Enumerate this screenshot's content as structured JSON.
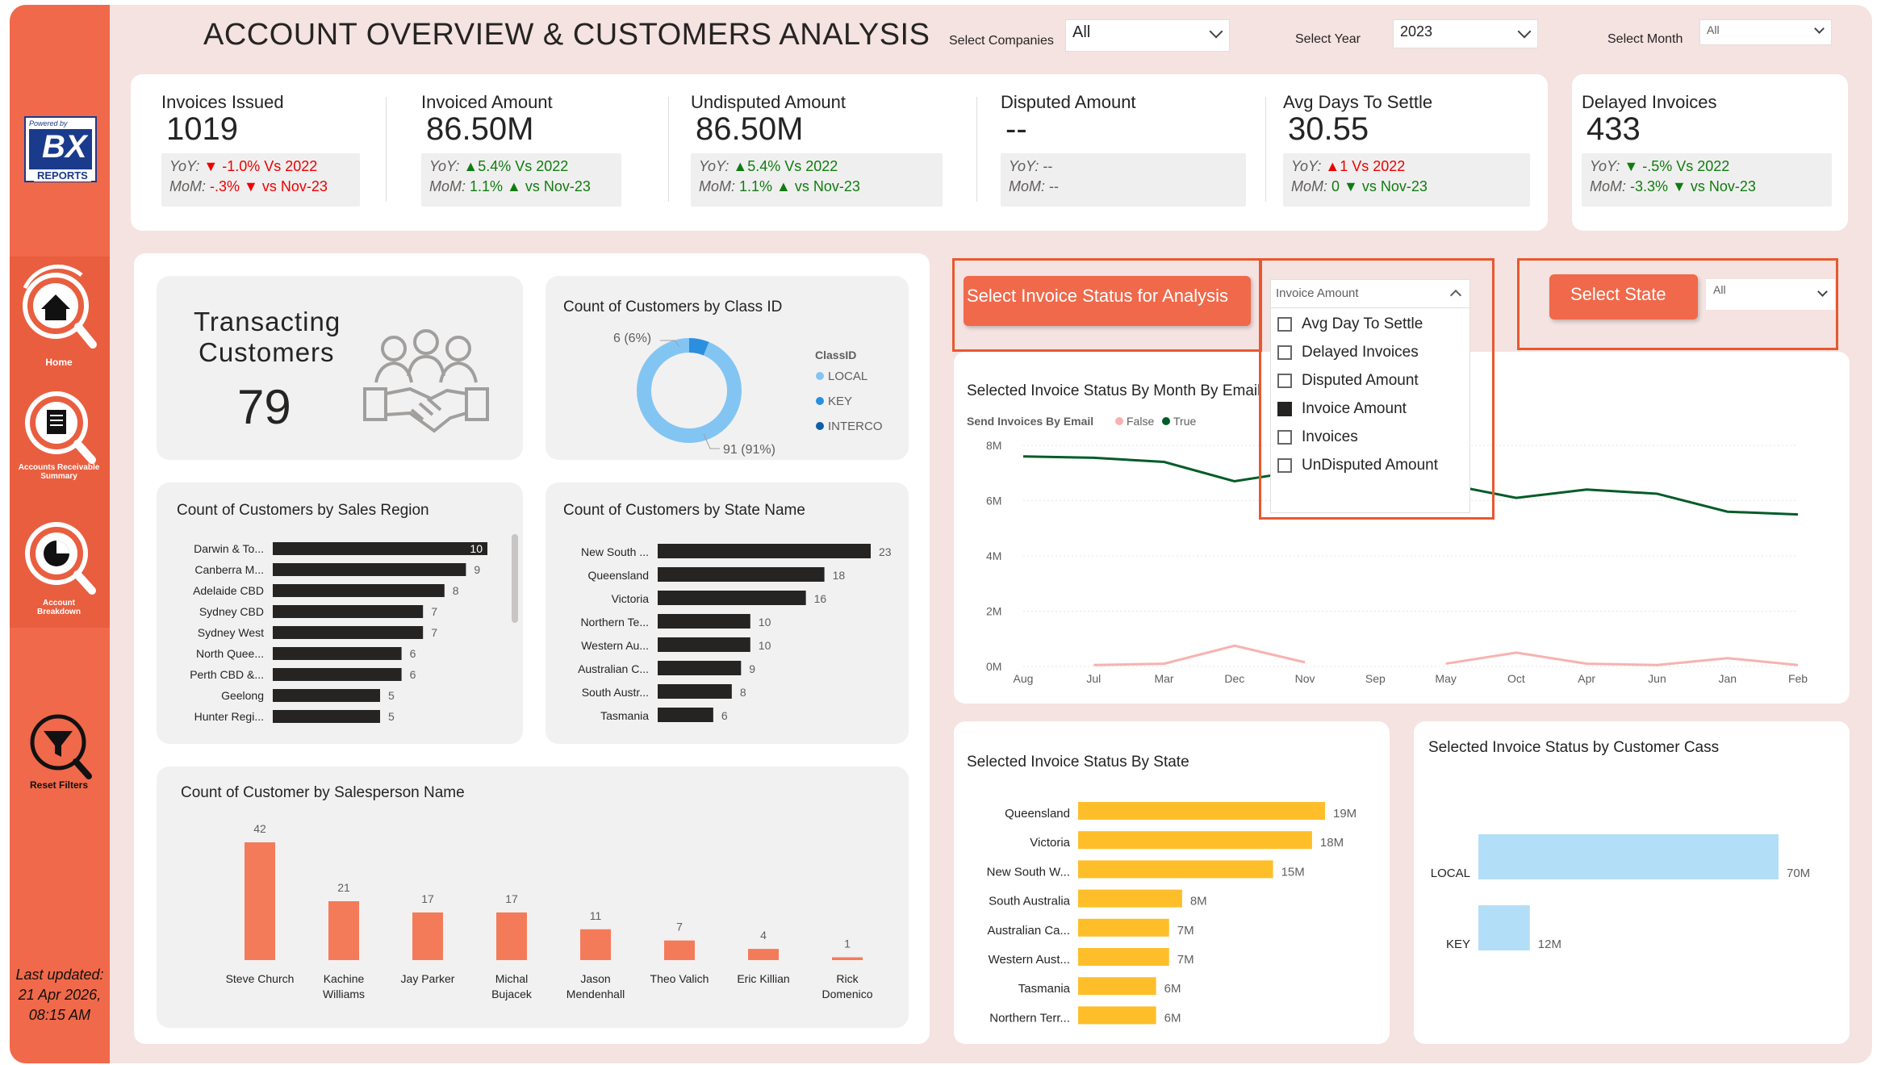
{
  "title": "ACCOUNT OVERVIEW & CUSTOMERS ANALYSIS",
  "filters": {
    "companies": {
      "label": "Select Companies",
      "value": "All"
    },
    "year": {
      "label": "Select Year",
      "value": "2023"
    },
    "month": {
      "label": "Select Month",
      "value": "All"
    }
  },
  "sidebar": {
    "logo_top": "Powered by",
    "logo_main": "BX",
    "logo_sub": "REPORTS",
    "nav": [
      {
        "label": "Home"
      },
      {
        "label": "Accounts Receivable Summary"
      },
      {
        "label": "Account Breakdown"
      },
      {
        "label": "Reset Filters"
      }
    ],
    "last_updated": [
      "Last updated:",
      "21 Apr 2026,",
      "08:15 AM"
    ]
  },
  "kpis": [
    {
      "title": "Invoices Issued",
      "value": "1019",
      "yoy_prefix": "YoY:",
      "yoy": "▼ -1.0% Vs 2022",
      "yoy_color": "red",
      "mom_prefix": "MoM:",
      "mom": "-.3% ▼ vs Nov-23",
      "mom_color": "red"
    },
    {
      "title": "Invoiced Amount",
      "value": "86.50M",
      "yoy_prefix": "YoY:",
      "yoy": "▲5.4% Vs 2022",
      "yoy_color": "green",
      "mom_prefix": "MoM:",
      "mom": "1.1% ▲ vs Nov-23",
      "mom_color": "green"
    },
    {
      "title": "Undisputed Amount",
      "value": "86.50M",
      "yoy_prefix": "YoY:",
      "yoy": "▲5.4% Vs 2022",
      "yoy_color": "green",
      "mom_prefix": "MoM:",
      "mom": "1.1% ▲ vs Nov-23",
      "mom_color": "green"
    },
    {
      "title": "Disputed Amount",
      "value": "--",
      "yoy_prefix": "YoY:",
      "yoy": "--",
      "yoy_color": "grey",
      "mom_prefix": "MoM:",
      "mom": "--",
      "mom_color": "grey"
    },
    {
      "title": "Avg Days To Settle",
      "value": "30.55",
      "yoy_prefix": "YoY:",
      "yoy": "▲1 Vs 2022",
      "yoy_color": "red",
      "mom_prefix": "MoM:",
      "mom": "0 ▼ vs Nov-23",
      "mom_color": "green"
    },
    {
      "title": "Delayed Invoices",
      "value": "433",
      "yoy_prefix": "YoY:",
      "yoy": "▼ -.5% Vs 2022",
      "yoy_color": "green",
      "mom_prefix": "MoM:",
      "mom": "-3.3% ▼ vs Nov-23",
      "mom_color": "green"
    }
  ],
  "transacting": {
    "label_line1": "Transacting",
    "label_line2": "Customers",
    "value": "79"
  },
  "controls": {
    "invoice_status_button": "Select Invoice Status for Analysis",
    "invoice_status_selected": "Invoice Amount",
    "invoice_status_options": [
      {
        "label": "Avg Day To Settle",
        "checked": false
      },
      {
        "label": "Delayed Invoices",
        "checked": false
      },
      {
        "label": "Disputed Amount",
        "checked": false
      },
      {
        "label": "Invoice Amount",
        "checked": true
      },
      {
        "label": "Invoices",
        "checked": false
      },
      {
        "label": "UnDisputed Amount",
        "checked": false
      }
    ],
    "state_button": "Select State",
    "state_value": "All"
  },
  "colors": {
    "accent": "#f0694a",
    "bar_dark": "#252423",
    "bar_salesperson": "#f47b5a",
    "bar_state": "#fdbe2a",
    "bar_class": "#b3def7",
    "line_true": "#005c27",
    "line_false": "#f7b2b0",
    "donut_local": "#83c5f2",
    "donut_key": "#2b8fe0",
    "donut_interco": "#0d5fa6"
  },
  "chart_data": [
    {
      "type": "pie",
      "title": "Count of Customers by Class ID",
      "legend_title": "ClassID",
      "categories": [
        "LOCAL",
        "KEY",
        "INTERCO"
      ],
      "values": [
        91,
        6,
        0
      ],
      "labels": [
        "91 (91%)",
        "6 (6%)"
      ]
    },
    {
      "type": "bar",
      "title": "Count of Customers by Sales Region",
      "categories": [
        "Darwin & To...",
        "Canberra M...",
        "Adelaide CBD",
        "Sydney CBD",
        "Sydney West",
        "North Quee...",
        "Perth CBD &...",
        "Geelong",
        "Hunter Regi..."
      ],
      "values": [
        10,
        9,
        8,
        7,
        7,
        6,
        6,
        5,
        5
      ]
    },
    {
      "type": "bar",
      "title": "Count of Customers by State Name",
      "categories": [
        "New South ...",
        "Queensland",
        "Victoria",
        "Northern Te...",
        "Western Au...",
        "Australian C...",
        "South Austr...",
        "Tasmania"
      ],
      "values": [
        23,
        18,
        16,
        10,
        10,
        9,
        8,
        6
      ]
    },
    {
      "type": "bar",
      "title": "Count of Customer by Salesperson Name",
      "categories": [
        "Steve Church",
        "Kachine Williams",
        "Jay Parker",
        "Michal Bujacek",
        "Jason Mendenhall",
        "Theo Valich",
        "Eric Killian",
        "Rick Domenico"
      ],
      "values": [
        42,
        21,
        17,
        17,
        11,
        7,
        4,
        1
      ]
    },
    {
      "type": "line",
      "title": "Selected Invoice Status By Month By Email",
      "legend_title": "Send Invoices By Email",
      "x": [
        "Aug",
        "Jul",
        "Mar",
        "Dec",
        "Nov",
        "Sep",
        "May",
        "Oct",
        "Apr",
        "Jun",
        "Jan",
        "Feb"
      ],
      "y_ticks": [
        "0M",
        "2M",
        "4M",
        "6M",
        "8M"
      ],
      "ylim": [
        0,
        8
      ],
      "series": [
        {
          "name": "False",
          "values": [
            null,
            0.05,
            0.1,
            0.75,
            0.15,
            null,
            0.1,
            0.5,
            0.1,
            0.05,
            0.3,
            0.05
          ]
        },
        {
          "name": "True",
          "values": [
            7.6,
            7.55,
            7.4,
            6.7,
            7.1,
            6.9,
            6.6,
            6.1,
            6.4,
            6.25,
            5.6,
            5.5
          ]
        }
      ]
    },
    {
      "type": "bar",
      "title": "Selected Invoice Status By State",
      "categories": [
        "Queensland",
        "Victoria",
        "New South W...",
        "South Australia",
        "Australian Ca...",
        "Western Aust...",
        "Tasmania",
        "Northern Terr..."
      ],
      "values": [
        19,
        18,
        15,
        8,
        7,
        7,
        6,
        6
      ],
      "labels": [
        "19M",
        "18M",
        "15M",
        "8M",
        "7M",
        "7M",
        "6M",
        "6M"
      ]
    },
    {
      "type": "bar",
      "title": "Selected Invoice Status by Customer Cass",
      "categories": [
        "LOCAL",
        "KEY"
      ],
      "values": [
        70,
        12
      ],
      "labels": [
        "70M",
        "12M"
      ]
    }
  ]
}
